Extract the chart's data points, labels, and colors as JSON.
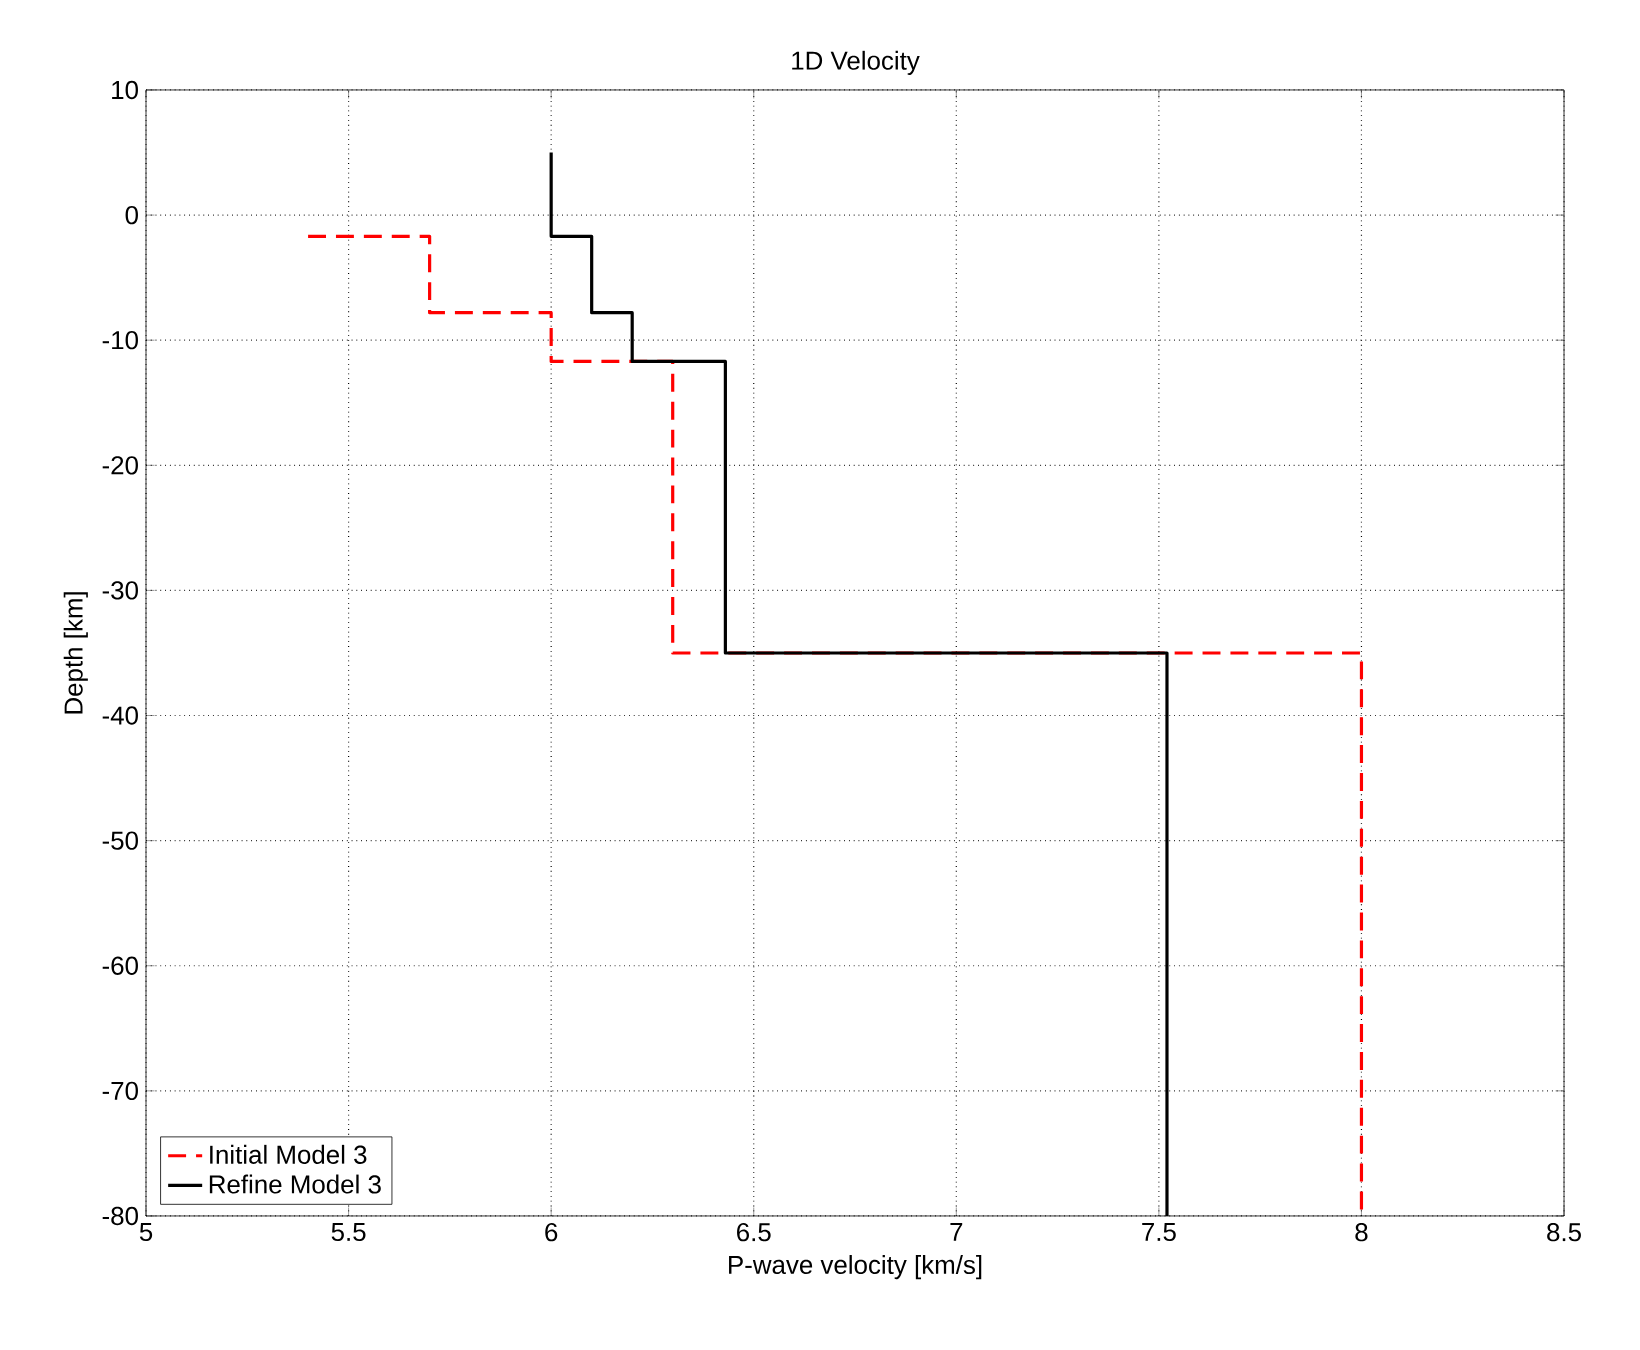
{
  "chart_data": {
    "type": "line",
    "title": "1D Velocity",
    "xlabel": "P-wave velocity [km/s]",
    "ylabel": "Depth [km]",
    "xlim": [
      5,
      8.5
    ],
    "xticks": [
      5,
      5.5,
      6,
      6.5,
      7,
      7.5,
      8,
      8.5
    ],
    "ylim": [
      -80,
      10
    ],
    "yticks": [
      -80,
      -70,
      -60,
      -50,
      -40,
      -30,
      -20,
      -10,
      0,
      10
    ],
    "grid": true,
    "legend": "bottom left",
    "marker": "none",
    "series": [
      {
        "name": "Initial Model 3",
        "color": "#ff0000",
        "line_style": "dashed",
        "x": [
          5.4,
          5.7,
          5.7,
          6.0,
          6.0,
          6.3,
          6.3,
          8.0,
          8.0
        ],
        "values": [
          -1.7,
          -1.7,
          -7.8,
          -7.8,
          -11.7,
          -11.7,
          -35,
          -35,
          -80
        ]
      },
      {
        "name": "Refine Model 3",
        "color": "#000000",
        "line_style": "solid",
        "x": [
          6.0,
          6.0,
          6.1,
          6.1,
          6.2,
          6.2,
          6.43,
          6.43,
          7.52,
          7.52
        ],
        "values": [
          5,
          -1.7,
          -1.7,
          -7.8,
          -7.8,
          -11.7,
          -11.7,
          -35,
          -35,
          -80
        ]
      }
    ]
  }
}
